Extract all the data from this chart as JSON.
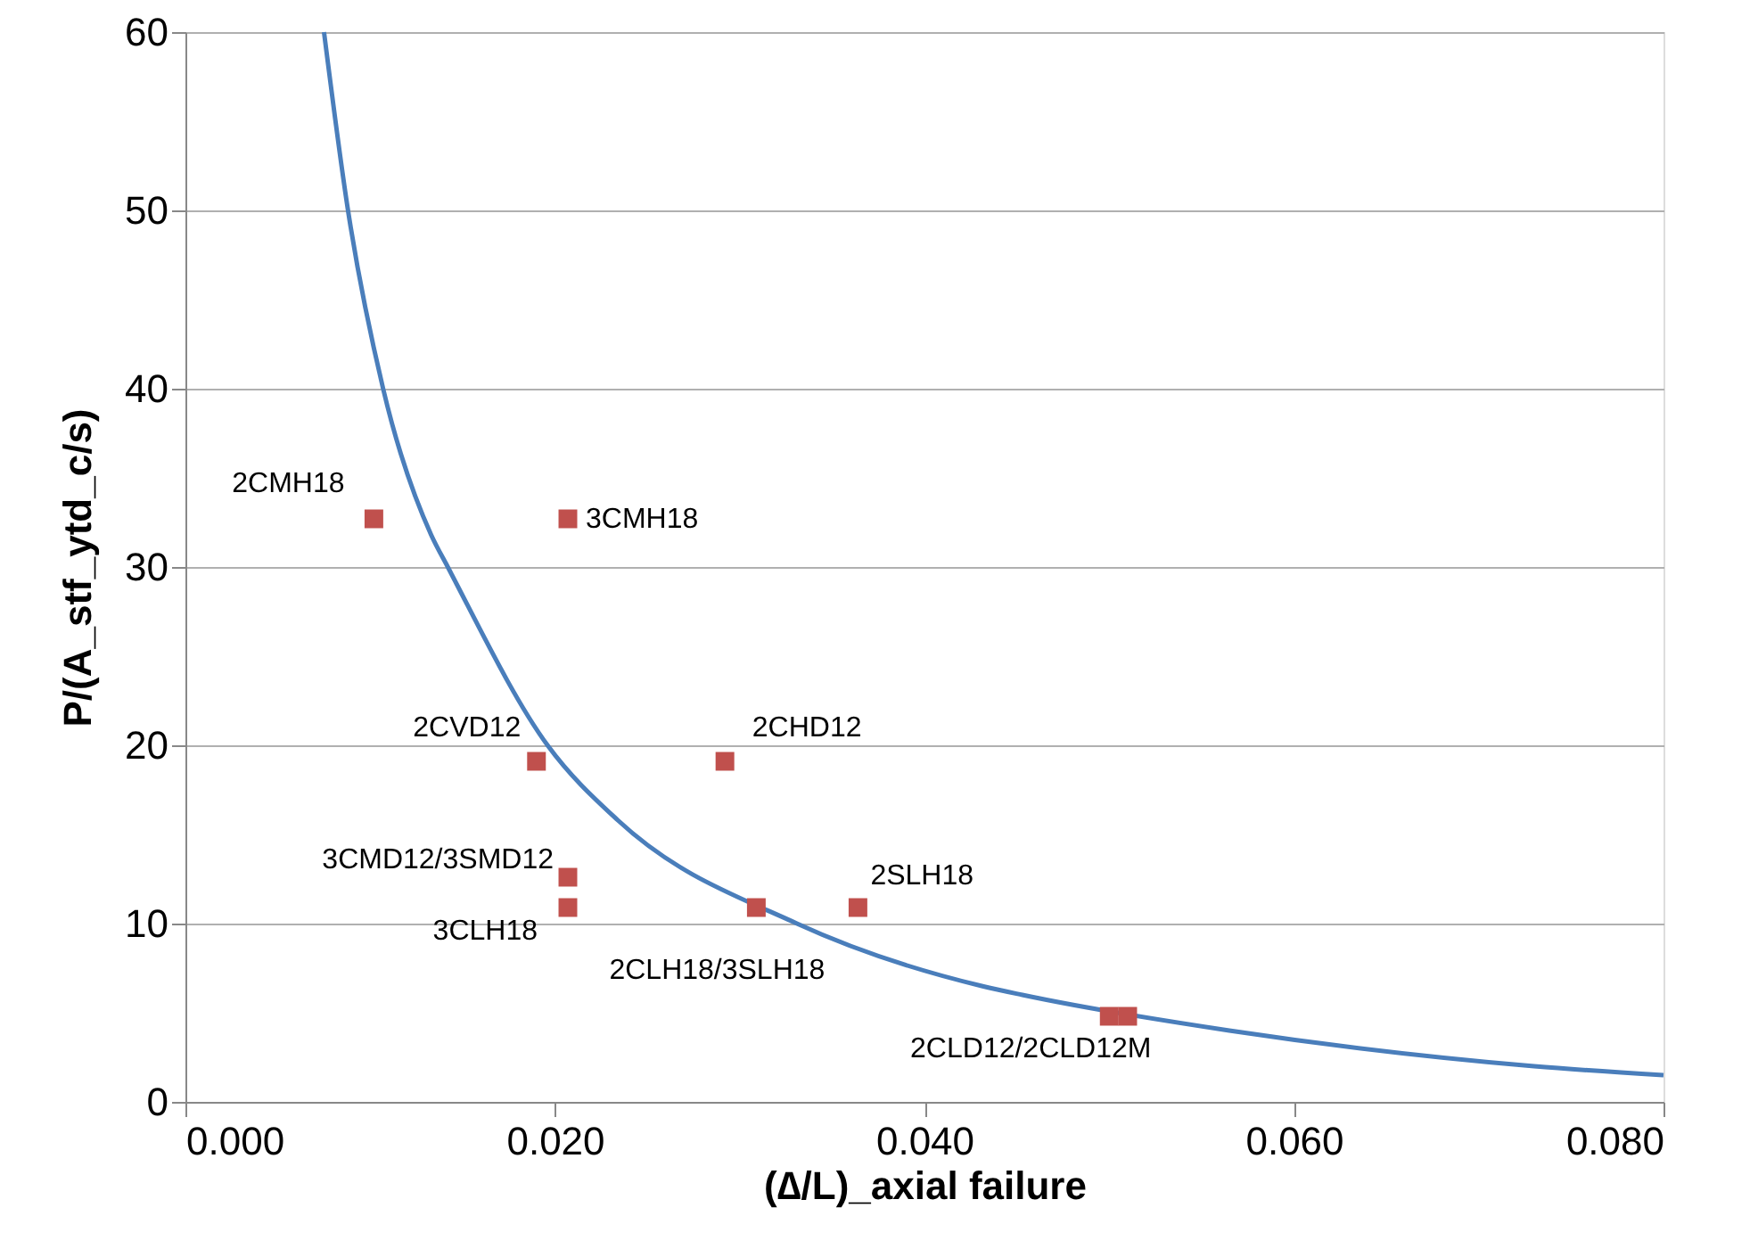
{
  "chart_data": {
    "type": "scatter",
    "xlabel": "(∆/L)_axial failure",
    "ylabel": "P/(A_stf_ytd_c/s)",
    "xlim": [
      0,
      0.08
    ],
    "xticks": [
      {
        "value": 0,
        "label": "0.000"
      },
      {
        "value": 0.02,
        "label": "0.020"
      },
      {
        "value": 0.04,
        "label": "0.040"
      },
      {
        "value": 0.06,
        "label": "0.060"
      },
      {
        "value": 0.08,
        "label": "0.080"
      }
    ],
    "ylim": [
      0,
      60
    ],
    "yticks": [
      0,
      10,
      20,
      30,
      40,
      50,
      60
    ],
    "grid": "y",
    "series": [
      {
        "type": "line",
        "color": "#4a7ebb",
        "marker": "none",
        "line_style": "solid",
        "x": [
          0.0075,
          0.0088,
          0.0107,
          0.0133,
          0.0142,
          0.0196,
          0.0234,
          0.0331,
          0.0431,
          0.0453,
          0.0565,
          0.073,
          0.08
        ],
        "values": [
          60,
          50,
          40,
          31.8,
          30,
          20,
          15.8,
          10,
          6.5,
          6.0,
          4.0,
          2.0,
          1.5
        ]
      },
      {
        "color": "#c0504d",
        "marker": "square",
        "x": [
          0.0102,
          0.0207,
          0.019,
          0.0292,
          0.0207,
          0.0207,
          0.0309,
          0.0364,
          0.05,
          0.051
        ],
        "values": [
          32.7,
          32.7,
          19.1,
          19.1,
          12.6,
          10.9,
          10.9,
          10.9,
          4.8,
          4.8
        ]
      }
    ],
    "annotations": [
      {
        "text": "2CMH18",
        "x": 0.0102,
        "y": 32.7
      },
      {
        "text": "3CMH18",
        "x": 0.0207,
        "y": 32.7
      },
      {
        "text": "2CVD12",
        "x": 0.019,
        "y": 19.1
      },
      {
        "text": "2CHD12",
        "x": 0.0292,
        "y": 19.1
      },
      {
        "text": "3CMD12/3SMD12",
        "x": 0.0207,
        "y": 12.6
      },
      {
        "text": "3CLH18",
        "x": 0.0207,
        "y": 10.9
      },
      {
        "text": "2CLH18/3SLH18",
        "x": 0.0309,
        "y": 10.9
      },
      {
        "text": "2SLH18",
        "x": 0.0364,
        "y": 10.9
      },
      {
        "text": "2CLD12/2CLD12M",
        "x": 0.05,
        "y": 4.8
      }
    ]
  }
}
